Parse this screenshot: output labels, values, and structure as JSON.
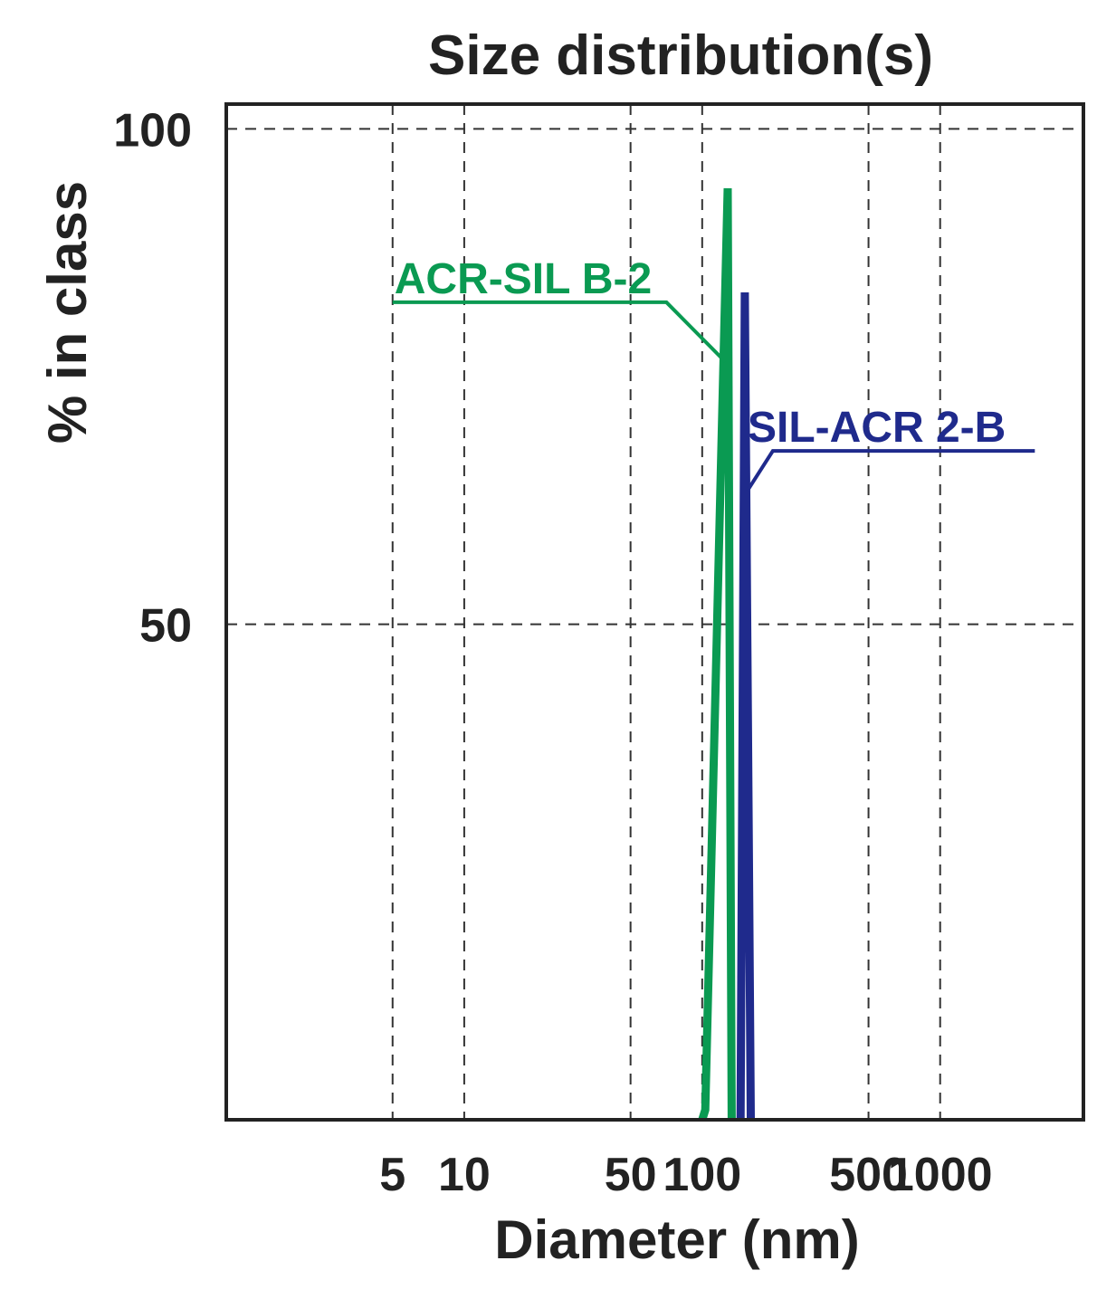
{
  "chart_data": {
    "type": "line",
    "title": "Size distribution(s)",
    "xlabel": "Diameter (nm)",
    "ylabel": "% in class",
    "x_scale": "log",
    "xlim": [
      1,
      4000
    ],
    "ylim": [
      0,
      102.5
    ],
    "x_ticks": [
      {
        "value": 5,
        "label": "5"
      },
      {
        "value": 10,
        "label": "10"
      },
      {
        "value": 50,
        "label": "50"
      },
      {
        "value": 100,
        "label": "100"
      },
      {
        "value": 500,
        "label": "500"
      },
      {
        "value": 1000,
        "label": "1000"
      }
    ],
    "y_ticks": [
      {
        "value": 50,
        "label": "50"
      },
      {
        "value": 100,
        "label": "100"
      }
    ],
    "grid": true,
    "series": [
      {
        "name": "ACR-SIL B-2",
        "color": "#0a9a52",
        "points": [
          [
            100,
            0
          ],
          [
            103,
            1
          ],
          [
            128,
            94
          ],
          [
            133,
            0
          ]
        ],
        "label_x": 5,
        "label_y": 82.5,
        "label_anchor": [
          125,
          76.5
        ]
      },
      {
        "name": "SIL-ACR 2-B",
        "color": "#1f2a8c",
        "points": [
          [
            145,
            0
          ],
          [
            151,
            83.5
          ],
          [
            160,
            0
          ]
        ],
        "label_x": 2500,
        "label_y": 67.5,
        "label_anchor": [
          155,
          63.5
        ]
      }
    ]
  }
}
